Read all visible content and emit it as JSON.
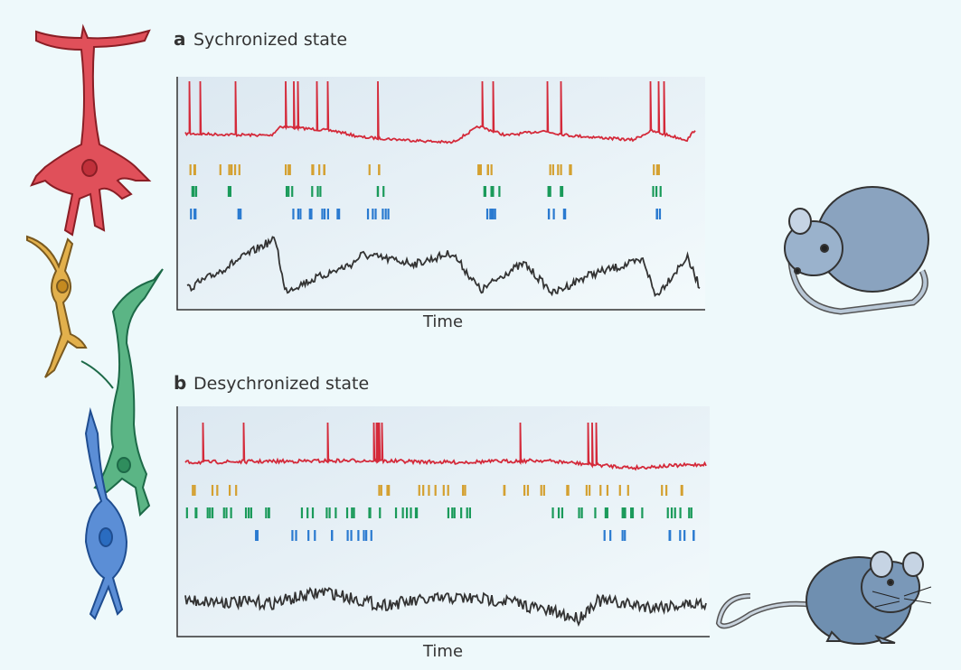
{
  "panels": [
    {
      "letter": "a",
      "title": "Sychronized state",
      "x_label": "Time"
    },
    {
      "letter": "b",
      "title": "Desychronized state",
      "x_label": "Time"
    }
  ]
}
